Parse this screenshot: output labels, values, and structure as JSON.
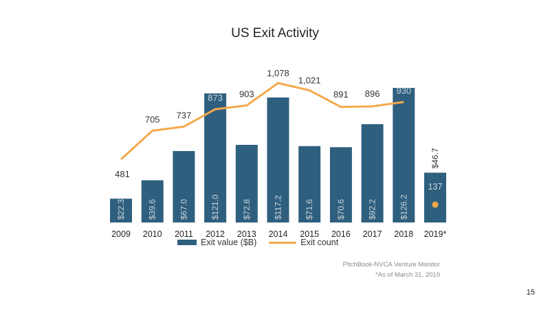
{
  "page_number": "15",
  "colors": {
    "bar": "#2f5f7e",
    "line": "#f5a94a",
    "bar_label": "#c9d6df",
    "text": "#333333"
  },
  "chart_data": {
    "type": "bar",
    "title": "US Exit Activity",
    "categories": [
      "2009",
      "2010",
      "2011",
      "2012",
      "2013",
      "2014",
      "2015",
      "2016",
      "2017",
      "2018",
      "2019*"
    ],
    "series": [
      {
        "name": "Exit value ($B)",
        "type": "bar",
        "values": [
          22.3,
          39.6,
          67.0,
          121.0,
          72.8,
          117.2,
          71.6,
          70.6,
          92.2,
          126.2,
          46.7
        ],
        "labels": [
          "$22.3",
          "$39.6",
          "$67.0",
          "$121.0",
          "$72.8",
          "$117.2",
          "$71.6",
          "$70.6",
          "$92.2",
          "$126.2",
          "$46.7"
        ]
      },
      {
        "name": "Exit count",
        "type": "line",
        "values": [
          481,
          705,
          737,
          873,
          903,
          1078,
          1021,
          891,
          896,
          930,
          137
        ],
        "labels": [
          "481",
          "705",
          "737",
          "873",
          "903",
          "1,078",
          "1,021",
          "891",
          "896",
          "930",
          "137"
        ],
        "last_point_marker_only": true
      }
    ],
    "legend": [
      "Exit value ($B)",
      "Exit count"
    ],
    "legend_position": "bottom",
    "grid": false,
    "source": "PitchBook-NVCA Venture Monitor",
    "footnote": "*As of March 31, 2019"
  }
}
